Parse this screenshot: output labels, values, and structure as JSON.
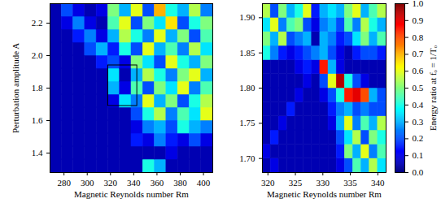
{
  "chart_data": [
    {
      "type": "heatmap",
      "xlabel": "Magnetic Reynolds number Rm",
      "ylabel": "Perturbation amplitude A",
      "xlim": [
        268,
        408
      ],
      "ylim": [
        1.28,
        2.32
      ],
      "xticks": [
        280,
        300,
        320,
        340,
        360,
        380,
        400
      ],
      "yticks": [
        1.4,
        1.6,
        1.8,
        {
          "value": 2,
          "label": "2.0"
        },
        2.2
      ],
      "box": {
        "x1": 318,
        "x2": 343,
        "y1": 1.69,
        "y2": 1.94
      },
      "x": [
        273,
        283,
        293,
        303,
        313,
        323,
        333,
        343,
        353,
        363,
        373,
        383,
        393,
        403
      ],
      "y": [
        1.32,
        1.4,
        1.48,
        1.56,
        1.64,
        1.72,
        1.8,
        1.88,
        1.96,
        2.04,
        2.12,
        2.2,
        2.28
      ],
      "values": [
        [
          0.05,
          0.05,
          0.05,
          0.05,
          0.05,
          0.05,
          0.05,
          0.05,
          0.4,
          0.3,
          0.05,
          0.05,
          0.05,
          0.05
        ],
        [
          0.05,
          0.05,
          0.05,
          0.05,
          0.05,
          0.05,
          0.05,
          0.05,
          0.05,
          0.05,
          0.1,
          0.05,
          0.05,
          0.05
        ],
        [
          0.05,
          0.05,
          0.05,
          0.05,
          0.05,
          0.05,
          0.05,
          0.15,
          0.1,
          0.25,
          0.15,
          0.1,
          0.2,
          0.1
        ],
        [
          0.05,
          0.05,
          0.05,
          0.05,
          0.05,
          0.05,
          0.05,
          0.1,
          0.25,
          0.3,
          0.2,
          0.4,
          0.3,
          0.25
        ],
        [
          0.05,
          0.05,
          0.05,
          0.05,
          0.05,
          0.05,
          0.05,
          0.2,
          0.4,
          0.55,
          0.25,
          0.45,
          0.35,
          0.6
        ],
        [
          0.05,
          0.05,
          0.05,
          0.05,
          0.05,
          0.1,
          0.35,
          0.25,
          0.6,
          0.3,
          0.5,
          0.2,
          0.4,
          0.55
        ],
        [
          0.05,
          0.05,
          0.05,
          0.05,
          0.05,
          0.3,
          0.1,
          0.45,
          0.2,
          0.5,
          0.35,
          0.6,
          0.25,
          0.45
        ],
        [
          0.05,
          0.05,
          0.05,
          0.05,
          0.05,
          0.35,
          0.05,
          0.3,
          0.55,
          0.4,
          0.25,
          0.5,
          0.6,
          0.3
        ],
        [
          0.05,
          0.05,
          0.05,
          0.05,
          0.15,
          0.2,
          0.1,
          0.5,
          0.35,
          0.2,
          0.6,
          0.4,
          0.3,
          0.5
        ],
        [
          0.05,
          0.05,
          0.05,
          0.2,
          0.3,
          0.15,
          0.4,
          0.2,
          0.6,
          0.3,
          0.45,
          0.25,
          0.55,
          0.35
        ],
        [
          0.05,
          0.05,
          0.15,
          0.25,
          0.1,
          0.3,
          0.55,
          0.4,
          0.25,
          0.6,
          0.3,
          0.5,
          0.2,
          0.45
        ],
        [
          0.05,
          0.1,
          0.25,
          0.1,
          0.05,
          0.45,
          0.6,
          0.2,
          0.5,
          0.35,
          0.65,
          0.2,
          0.4,
          0.5
        ],
        [
          0.05,
          0.2,
          0.1,
          0.05,
          0.1,
          0.5,
          0.3,
          0.6,
          0.2,
          0.7,
          0.4,
          0.3,
          0.55,
          0.25
        ]
      ]
    },
    {
      "type": "heatmap",
      "xlabel": "Magnetic Reynolds number Rm",
      "xlim": [
        319,
        341.5
      ],
      "ylim": [
        1.68,
        1.92
      ],
      "xticks": [
        320,
        325,
        330,
        335,
        340
      ],
      "yticks": [
        {
          "value": 1.7,
          "label": "1.70"
        },
        1.75,
        {
          "value": 1.8,
          "label": "1.80"
        },
        1.85,
        {
          "value": 1.9,
          "label": "1.90"
        }
      ],
      "x": [
        319.75,
        321.25,
        322.75,
        324.25,
        325.75,
        327.25,
        328.75,
        330.25,
        331.75,
        333.25,
        334.75,
        336.25,
        337.75,
        339.25,
        340.75
      ],
      "y": [
        1.69,
        1.71,
        1.73,
        1.75,
        1.77,
        1.79,
        1.81,
        1.83,
        1.85,
        1.87,
        1.89,
        1.91
      ],
      "values": [
        [
          0.05,
          0.1,
          0.05,
          0.05,
          0.05,
          0.05,
          0.05,
          0.05,
          0.05,
          0.1,
          0.2,
          0.45,
          0.3,
          0.55,
          0.35
        ],
        [
          0.1,
          0.05,
          0.05,
          0.05,
          0.05,
          0.05,
          0.05,
          0.05,
          0.05,
          0.15,
          0.5,
          0.3,
          0.6,
          0.25,
          0.45
        ],
        [
          0.05,
          0.15,
          0.05,
          0.05,
          0.05,
          0.05,
          0.05,
          0.05,
          0.05,
          0.2,
          0.35,
          0.55,
          0.2,
          0.5,
          0.4
        ],
        [
          0.05,
          0.05,
          0.1,
          0.05,
          0.05,
          0.05,
          0.05,
          0.05,
          0.1,
          0.3,
          0.6,
          0.25,
          0.45,
          0.3,
          0.55
        ],
        [
          0.05,
          0.05,
          0.05,
          0.15,
          0.05,
          0.05,
          0.05,
          0.05,
          0.15,
          0.25,
          0.3,
          0.2,
          0.25,
          0.2,
          0.2
        ],
        [
          0.05,
          0.05,
          0.05,
          0.05,
          0.1,
          0.05,
          0.05,
          0.1,
          0.2,
          0.4,
          0.85,
          0.9,
          0.8,
          0.3,
          0.2
        ],
        [
          0.05,
          0.05,
          0.05,
          0.05,
          0.05,
          0.1,
          0.05,
          0.2,
          0.6,
          0.95,
          0.4,
          0.2,
          0.1,
          0.05,
          0.05
        ],
        [
          0.05,
          0.05,
          0.05,
          0.05,
          0.1,
          0.15,
          0.1,
          0.85,
          0.3,
          0.1,
          0.05,
          0.05,
          0.05,
          0.05,
          0.05
        ],
        [
          0.4,
          0.25,
          0.15,
          0.1,
          0.15,
          0.2,
          0.25,
          0.3,
          0.2,
          0.1,
          0.05,
          0.15,
          0.2,
          0.2,
          0.15
        ],
        [
          0.5,
          0.3,
          0.55,
          0.2,
          0.25,
          0.3,
          0.05,
          0.3,
          0.25,
          0.15,
          0.2,
          0.35,
          0.5,
          0.3,
          0.45
        ],
        [
          0.35,
          0.6,
          0.25,
          0.45,
          0.5,
          0.2,
          0.1,
          0.25,
          0.3,
          0.2,
          0.45,
          0.25,
          0.55,
          0.4,
          0.3
        ],
        [
          0.55,
          0.2,
          0.5,
          0.3,
          0.4,
          0.6,
          0.15,
          0.3,
          0.35,
          0.3,
          0.5,
          0.6,
          0.3,
          0.45,
          0.55
        ]
      ],
      "colorbar": {
        "label": "Energy ratio at fₒ = 1/Tₒ",
        "range": [
          0,
          1
        ],
        "ticks": [
          {
            "value": 0,
            "label": "0.0"
          },
          0.1,
          0.2,
          0.3,
          0.4,
          0.5,
          0.6,
          0.7,
          0.8,
          0.9,
          {
            "value": 1,
            "label": "1.0"
          }
        ]
      }
    }
  ]
}
